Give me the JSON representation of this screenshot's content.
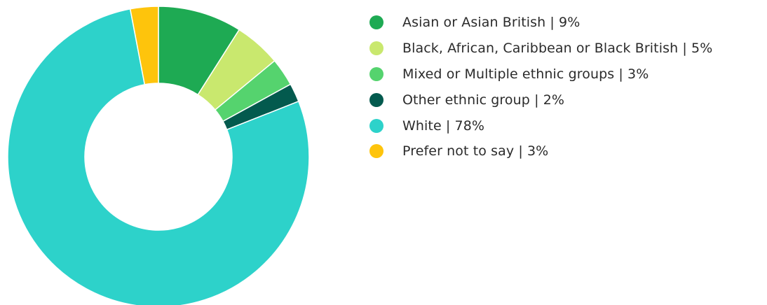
{
  "chart_data": {
    "type": "pie",
    "donut": true,
    "categories": [
      "Asian or Asian British",
      "Black, African, Caribbean or Black British",
      "Mixed or Multiple ethnic groups",
      "Other ethnic group",
      "White",
      "Prefer not to say"
    ],
    "values": [
      9,
      5,
      3,
      2,
      78,
      3
    ],
    "labels": [
      "Asian or Asian British | 9%",
      "Black, African, Caribbean or Black British | 5%",
      "Mixed or Multiple ethnic groups | 3%",
      "Other ethnic group | 2%",
      "White | 78%",
      "Prefer not to say | 3%"
    ],
    "colors": [
      "#1eaa53",
      "#c9e86e",
      "#55d36e",
      "#035a4e",
      "#2dd2ca",
      "#fec40c"
    ],
    "legend_position": "right",
    "title": ""
  }
}
